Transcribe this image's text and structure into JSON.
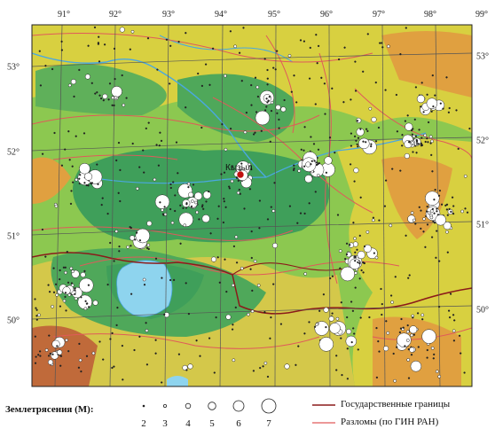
{
  "map": {
    "lon_labels": [
      "91°",
      "92°",
      "93°",
      "94°",
      "95°",
      "96°",
      "97°",
      "98°",
      "99°"
    ],
    "lat_labels_left": [
      "53°",
      "52°",
      "51°",
      "50°"
    ],
    "lat_labels_right": [
      "53°",
      "52°",
      "51°",
      "50°"
    ],
    "place_label": "Кызыл",
    "colors": {
      "lowland": "#3f9f5a",
      "plain": "#8cc850",
      "upland": "#d8d040",
      "highland": "#e0a040",
      "mountain": "#c06a3a",
      "lake": "#8ed4ee",
      "river": "#4aa8e0",
      "border": "#8b1a1a",
      "fault": "#e05a5a",
      "grid": "#555555"
    }
  },
  "legend": {
    "quake_title": "Землетрясения (M):",
    "magnitudes": [
      "2",
      "3",
      "4",
      "5",
      "6",
      "7"
    ],
    "border_label": "Государственные границы",
    "fault_label": "Разломы (по ГИН РАН)"
  }
}
